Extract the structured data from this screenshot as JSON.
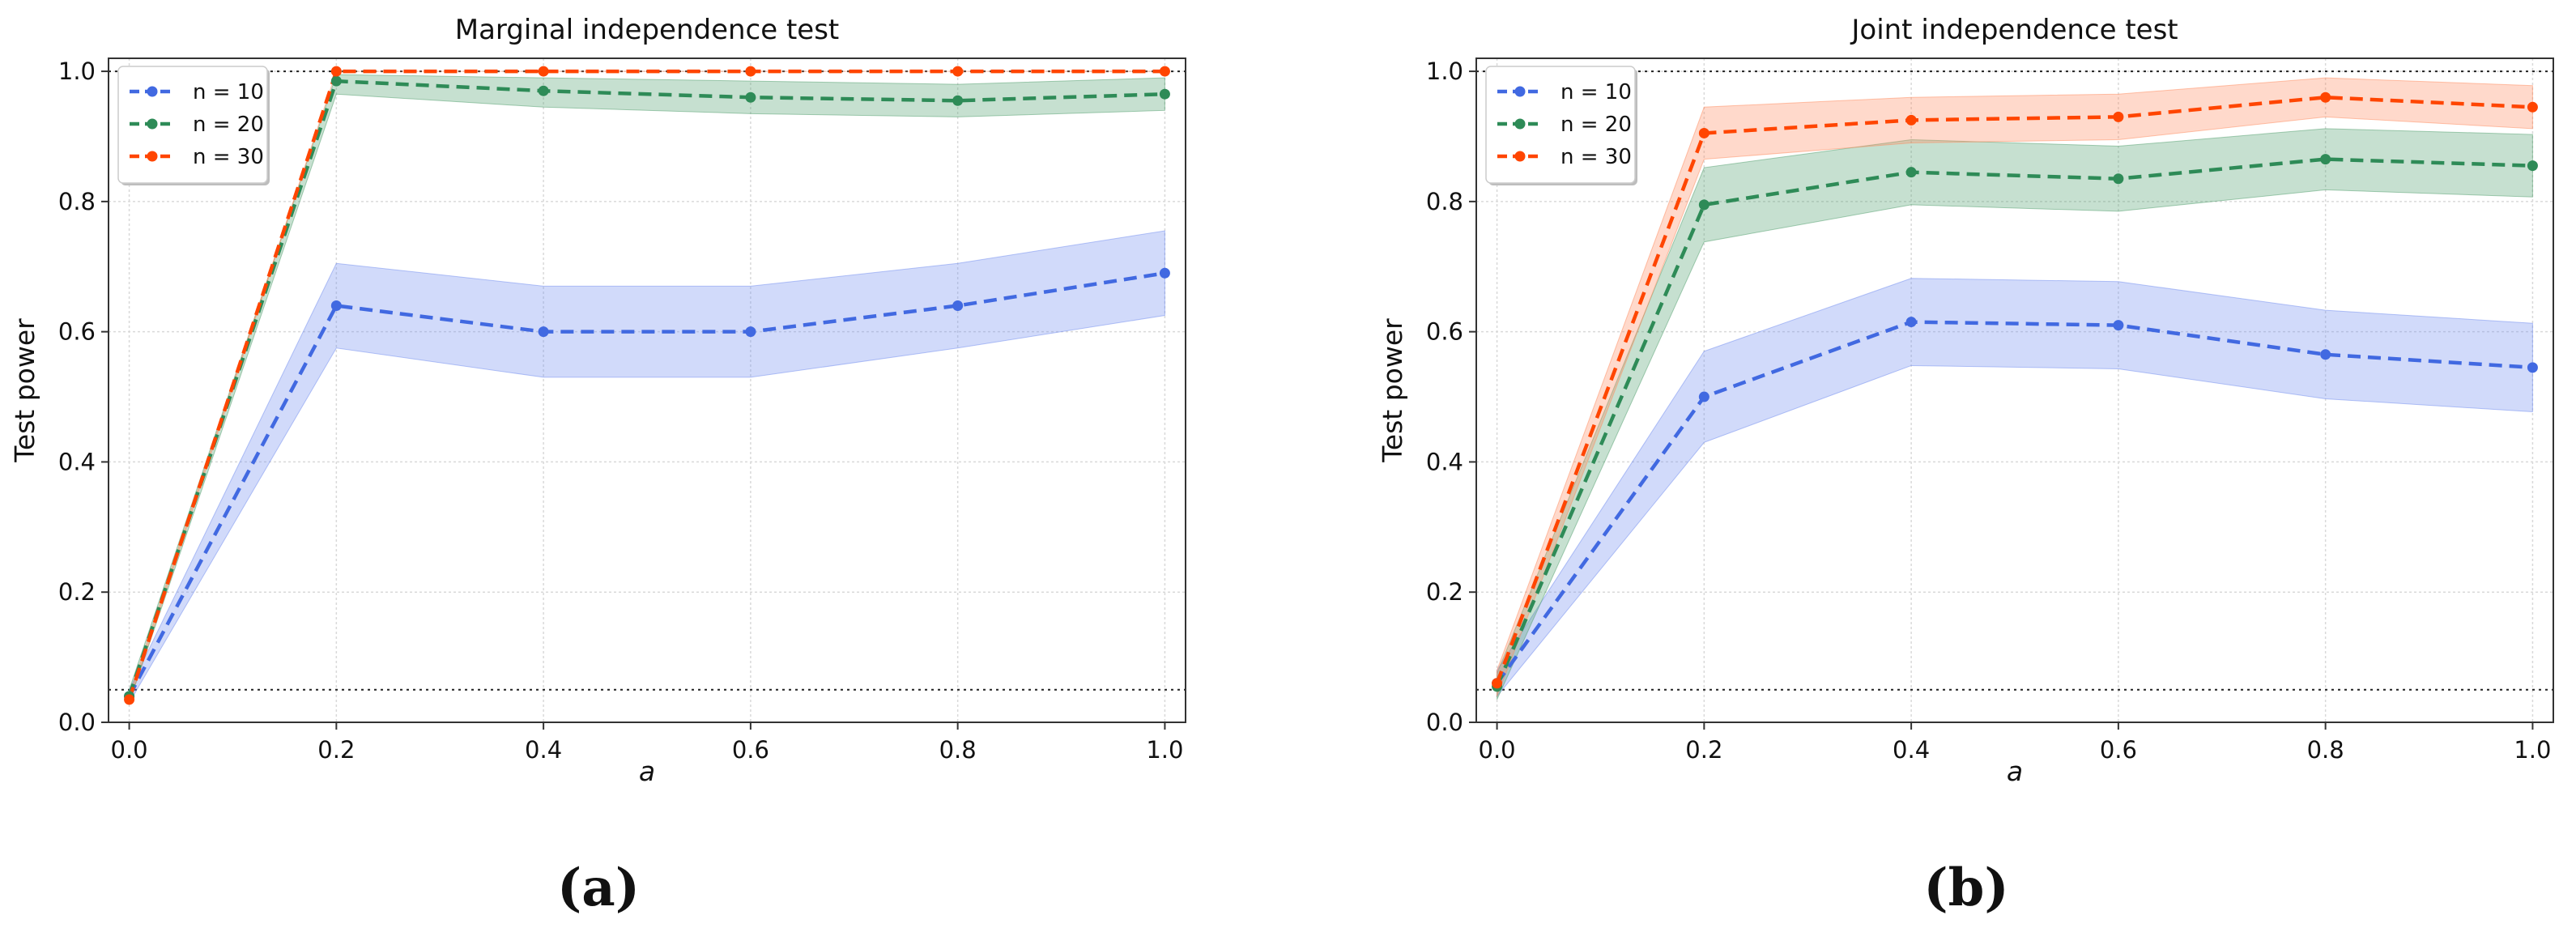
{
  "chart_data": [
    {
      "type": "line",
      "title": "Marginal independence test",
      "xlabel": "a",
      "ylabel": "Test power",
      "caption": "(a)",
      "x": [
        0.0,
        0.2,
        0.4,
        0.6,
        0.8,
        1.0
      ],
      "xlim": [
        -0.02,
        1.02
      ],
      "ylim": [
        0.0,
        1.02
      ],
      "xticks": [
        "0.0",
        "0.2",
        "0.4",
        "0.6",
        "0.8",
        "1.0"
      ],
      "yticks": [
        "0.0",
        "0.2",
        "0.4",
        "0.6",
        "0.8",
        "1.0"
      ],
      "reference_lines": [
        0.05,
        1.0
      ],
      "grid": true,
      "legend_position": "top-left",
      "series": [
        {
          "name": "n = 10",
          "color": "#4169e1",
          "band_color": "#6f8cf0",
          "values": [
            0.04,
            0.64,
            0.6,
            0.6,
            0.64,
            0.69
          ],
          "lower": [
            0.03,
            0.575,
            0.53,
            0.53,
            0.575,
            0.625
          ],
          "upper": [
            0.05,
            0.705,
            0.67,
            0.67,
            0.705,
            0.755
          ]
        },
        {
          "name": "n = 20",
          "color": "#2e8b57",
          "band_color": "#4f9e6c",
          "values": [
            0.04,
            0.985,
            0.97,
            0.96,
            0.955,
            0.965
          ],
          "lower": [
            0.03,
            0.965,
            0.945,
            0.935,
            0.93,
            0.94
          ],
          "upper": [
            0.05,
            0.995,
            0.99,
            0.985,
            0.98,
            0.99
          ]
        },
        {
          "name": "n = 30",
          "color": "#ff4500",
          "band_color": "#ff8a5c",
          "values": [
            0.035,
            1.0,
            1.0,
            1.0,
            1.0,
            1.0
          ],
          "lower": [
            0.03,
            1.0,
            1.0,
            1.0,
            1.0,
            1.0
          ],
          "upper": [
            0.04,
            1.0,
            1.0,
            1.0,
            1.0,
            1.0
          ]
        }
      ]
    },
    {
      "type": "line",
      "title": "Joint independence test",
      "xlabel": "a",
      "ylabel": "Test power",
      "caption": "(b)",
      "x": [
        0.0,
        0.2,
        0.4,
        0.6,
        0.8,
        1.0
      ],
      "xlim": [
        -0.02,
        1.02
      ],
      "ylim": [
        0.0,
        1.02
      ],
      "xticks": [
        "0.0",
        "0.2",
        "0.4",
        "0.6",
        "0.8",
        "1.0"
      ],
      "yticks": [
        "0.0",
        "0.2",
        "0.4",
        "0.6",
        "0.8",
        "1.0"
      ],
      "reference_lines": [
        0.05,
        1.0
      ],
      "grid": true,
      "legend_position": "top-left",
      "series": [
        {
          "name": "n = 10",
          "color": "#4169e1",
          "band_color": "#6f8cf0",
          "values": [
            0.06,
            0.5,
            0.615,
            0.61,
            0.565,
            0.545
          ],
          "lower": [
            0.04,
            0.43,
            0.548,
            0.543,
            0.497,
            0.477
          ],
          "upper": [
            0.08,
            0.57,
            0.682,
            0.677,
            0.633,
            0.613
          ]
        },
        {
          "name": "n = 20",
          "color": "#2e8b57",
          "band_color": "#4f9e6c",
          "values": [
            0.055,
            0.795,
            0.845,
            0.835,
            0.865,
            0.855
          ],
          "lower": [
            0.035,
            0.738,
            0.795,
            0.785,
            0.818,
            0.807
          ],
          "upper": [
            0.075,
            0.852,
            0.895,
            0.885,
            0.912,
            0.903
          ]
        },
        {
          "name": "n = 30",
          "color": "#ff4500",
          "band_color": "#ff8a5c",
          "values": [
            0.06,
            0.905,
            0.925,
            0.93,
            0.96,
            0.945
          ],
          "lower": [
            0.04,
            0.865,
            0.89,
            0.895,
            0.93,
            0.912
          ],
          "upper": [
            0.08,
            0.945,
            0.96,
            0.965,
            0.99,
            0.978
          ]
        }
      ]
    }
  ]
}
